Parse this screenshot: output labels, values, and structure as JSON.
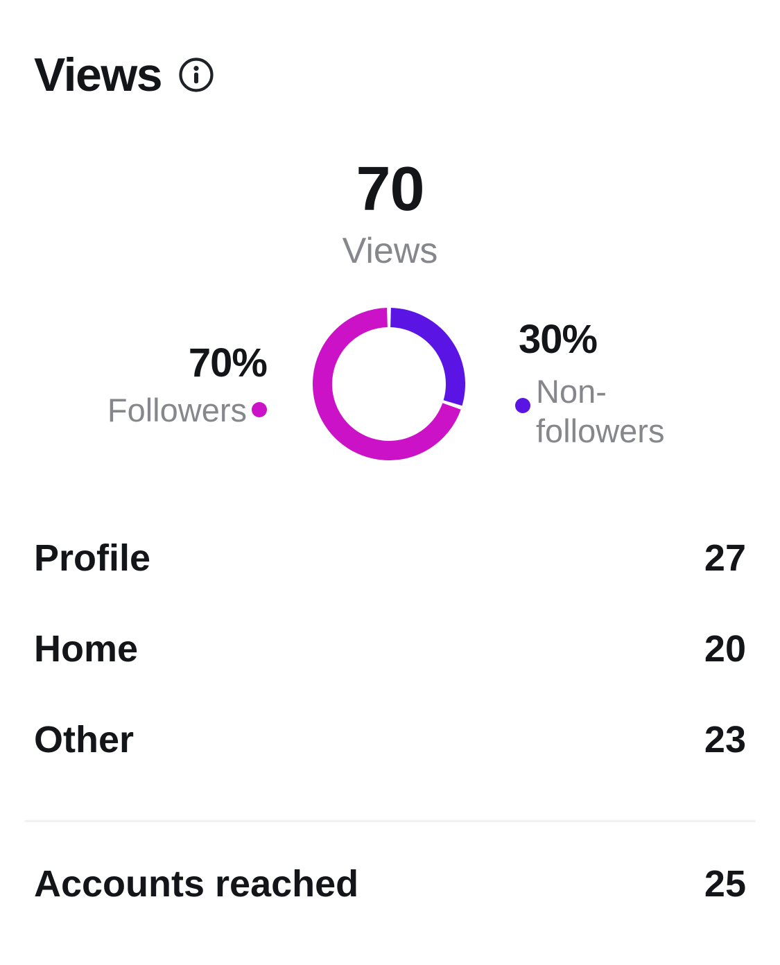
{
  "header": {
    "title": "Views"
  },
  "summary": {
    "value": "70",
    "label": "Views"
  },
  "chart_data": {
    "type": "pie",
    "subtype": "donut",
    "title": "Views",
    "total": {
      "value": 70,
      "label": "Views"
    },
    "series": [
      {
        "name": "Followers",
        "percent": 70,
        "color": "#CC12C7"
      },
      {
        "name": "Non-followers",
        "percent": 30,
        "color": "#5A14E4"
      }
    ],
    "donut": {
      "start_angle_deg": -90,
      "direction": "clockwise",
      "draw_order": [
        1,
        0
      ],
      "gap_deg": 3,
      "stroke_width": 28,
      "radius": 96
    },
    "legend_position": "sides"
  },
  "legend": {
    "left": {
      "percent": "70%",
      "label": "Followers"
    },
    "right": {
      "percent": "30%",
      "label": "Non-followers"
    }
  },
  "breakdown": {
    "rows": [
      {
        "label": "Profile",
        "value": "27"
      },
      {
        "label": "Home",
        "value": "20"
      },
      {
        "label": "Other",
        "value": "23"
      }
    ]
  },
  "footer": {
    "label": "Accounts reached",
    "value": "25"
  },
  "colors": {
    "followers": "#CC12C7",
    "non_followers": "#5A14E4",
    "text_primary": "#131519",
    "text_secondary": "#86878B",
    "divider": "#F1F1F3"
  }
}
